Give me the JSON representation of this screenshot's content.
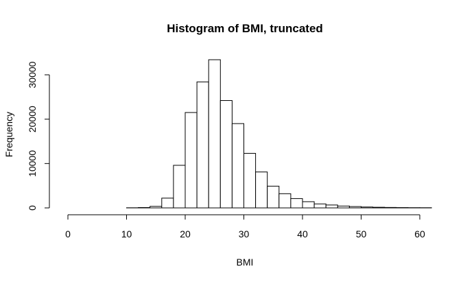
{
  "chart_data": {
    "type": "bar",
    "title": "Histogram of BMI, truncated",
    "xlabel": "BMI",
    "ylabel": "Frequency",
    "xlim": [
      0,
      62
    ],
    "ylim": [
      0,
      33500
    ],
    "x_ticks": [
      "0",
      "10",
      "20",
      "30",
      "40",
      "50",
      "60"
    ],
    "y_ticks": [
      "0",
      "10000",
      "20000",
      "30000"
    ],
    "bin_width": 2,
    "bins": [
      {
        "start": 10,
        "end": 12,
        "value": 30
      },
      {
        "start": 12,
        "end": 14,
        "value": 80
      },
      {
        "start": 14,
        "end": 16,
        "value": 350
      },
      {
        "start": 16,
        "end": 18,
        "value": 2200
      },
      {
        "start": 18,
        "end": 20,
        "value": 9600
      },
      {
        "start": 20,
        "end": 22,
        "value": 21500
      },
      {
        "start": 22,
        "end": 24,
        "value": 28400
      },
      {
        "start": 24,
        "end": 26,
        "value": 33400
      },
      {
        "start": 26,
        "end": 28,
        "value": 24200
      },
      {
        "start": 28,
        "end": 30,
        "value": 19000
      },
      {
        "start": 30,
        "end": 32,
        "value": 12300
      },
      {
        "start": 32,
        "end": 34,
        "value": 8100
      },
      {
        "start": 34,
        "end": 36,
        "value": 4900
      },
      {
        "start": 36,
        "end": 38,
        "value": 3200
      },
      {
        "start": 38,
        "end": 40,
        "value": 2100
      },
      {
        "start": 40,
        "end": 42,
        "value": 1400
      },
      {
        "start": 42,
        "end": 44,
        "value": 900
      },
      {
        "start": 44,
        "end": 46,
        "value": 650
      },
      {
        "start": 46,
        "end": 48,
        "value": 420
      },
      {
        "start": 48,
        "end": 50,
        "value": 300
      },
      {
        "start": 50,
        "end": 52,
        "value": 200
      },
      {
        "start": 52,
        "end": 54,
        "value": 140
      },
      {
        "start": 54,
        "end": 56,
        "value": 100
      },
      {
        "start": 56,
        "end": 58,
        "value": 70
      },
      {
        "start": 58,
        "end": 60,
        "value": 50
      },
      {
        "start": 60,
        "end": 62,
        "value": 40
      }
    ]
  }
}
